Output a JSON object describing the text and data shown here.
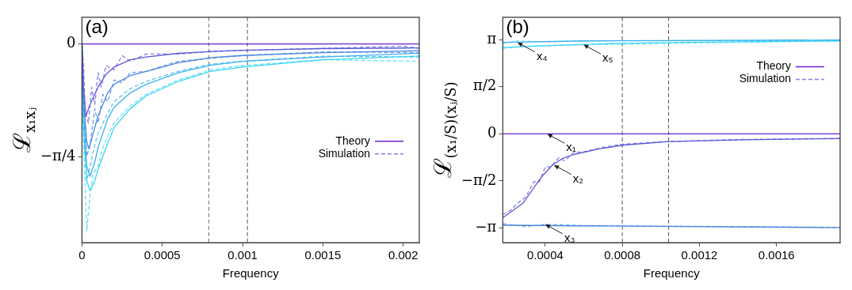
{
  "chart_data": [
    {
      "type": "line",
      "title": "(a)",
      "xlabel": "Frequency",
      "ylabel": "ℒ$_{x₁xⱼ}$",
      "xlim": [
        0,
        0.0021
      ],
      "ylim": [
        -1.38,
        0.186
      ],
      "xticks": [
        0,
        0.0005,
        0.001,
        0.0015,
        0.002
      ],
      "yticks": [
        {
          "value": -0.7854,
          "label": "−π/4"
        },
        0
      ],
      "grid": false,
      "legend": "right",
      "marker": "none",
      "ref_lines": [
        {
          "axis": "x",
          "value": 0.00079,
          "color": "#777777",
          "line_style": "dashed"
        },
        {
          "axis": "x",
          "value": 0.00103,
          "color": "#555555",
          "line_style": "dashed"
        }
      ],
      "series": [
        {
          "name": "Theory",
          "color": "#6a1fd0",
          "line_style": "solid",
          "x": [
            0,
            0.0021
          ],
          "values": [
            0,
            0
          ]
        },
        {
          "color": "#5a5ad8",
          "line_style": "solid",
          "x": [
            0,
            1e-05,
            2.5e-05,
            5e-05,
            0.0001,
            0.00015,
            0.0002,
            0.0003,
            0.0004,
            0.0006,
            0.0008,
            0.001,
            0.0015,
            0.0021
          ],
          "values": [
            0,
            -0.3,
            -0.5,
            -0.42,
            -0.3,
            -0.21,
            -0.16,
            -0.11,
            -0.09,
            -0.065,
            -0.053,
            -0.044,
            -0.032,
            -0.027
          ]
        },
        {
          "color": "#4a88e0",
          "line_style": "solid",
          "x": [
            0,
            1e-05,
            3e-05,
            4.4e-05,
            7e-05,
            0.0001,
            0.00016,
            0.0002,
            0.0003,
            0.0004,
            0.0006,
            0.0008,
            0.001,
            0.0015,
            0.0021
          ],
          "values": [
            0,
            -0.4,
            -0.68,
            -0.73,
            -0.62,
            -0.5,
            -0.34,
            -0.28,
            -0.22,
            -0.19,
            -0.13,
            -0.095,
            -0.08,
            -0.06,
            -0.047
          ]
        },
        {
          "color": "#3ab0ee",
          "line_style": "solid",
          "x": [
            0,
            1e-05,
            3e-05,
            5e-05,
            8e-05,
            0.0001,
            0.00016,
            0.0002,
            0.0003,
            0.0004,
            0.0006,
            0.0008,
            0.001,
            0.0015,
            0.0021
          ],
          "values": [
            0,
            -0.5,
            -0.85,
            -0.92,
            -0.82,
            -0.72,
            -0.52,
            -0.44,
            -0.34,
            -0.28,
            -0.2,
            -0.148,
            -0.12,
            -0.09,
            -0.064
          ]
        },
        {
          "color": "#33d6f5",
          "line_style": "solid",
          "x": [
            0,
            1e-05,
            3e-05,
            5e-05,
            8e-05,
            0.0001,
            0.00016,
            0.0002,
            0.0003,
            0.0004,
            0.0006,
            0.0008,
            0.001,
            0.0015,
            0.0021
          ],
          "values": [
            0,
            -0.6,
            -0.95,
            -1.02,
            -0.95,
            -0.87,
            -0.69,
            -0.58,
            -0.45,
            -0.36,
            -0.26,
            -0.19,
            -0.16,
            -0.11,
            -0.084
          ]
        },
        {
          "name": "Simulation",
          "color": "#8a7ee6",
          "line_style": "dashed",
          "x": [
            0,
            1e-05,
            2e-05,
            4e-05,
            6e-05,
            8e-05,
            0.0001,
            0.00012,
            0.00015,
            0.0002,
            0.00025,
            0.0003,
            0.0004,
            0.0006,
            0.0008,
            0.001,
            0.0015,
            0.002,
            0.0021
          ],
          "values": [
            0,
            -0.15,
            -0.48,
            -0.55,
            -0.3,
            -0.42,
            -0.2,
            -0.3,
            -0.15,
            -0.18,
            -0.08,
            -0.12,
            -0.07,
            -0.07,
            -0.05,
            -0.045,
            -0.03,
            -0.015,
            -0.03
          ]
        },
        {
          "color": "#6f9ae8",
          "line_style": "dashed",
          "x": [
            0,
            1e-05,
            3e-05,
            5e-05,
            8e-05,
            0.0001,
            0.00013,
            0.00016,
            0.0002,
            0.00025,
            0.0003,
            0.0004,
            0.0006,
            0.0008,
            0.001,
            0.0015,
            0.0021
          ],
          "values": [
            0,
            -0.3,
            -0.78,
            -0.7,
            -0.45,
            -0.55,
            -0.35,
            -0.4,
            -0.25,
            -0.27,
            -0.2,
            -0.19,
            -0.12,
            -0.1,
            -0.08,
            -0.055,
            -0.06
          ]
        },
        {
          "color": "#5cc0f0",
          "line_style": "dashed",
          "x": [
            0,
            1e-05,
            3e-05,
            5e-05,
            8e-05,
            0.0001,
            0.00013,
            0.00016,
            0.0002,
            0.0003,
            0.0004,
            0.0006,
            0.0008,
            0.001,
            0.0015,
            0.0021
          ],
          "values": [
            0,
            -0.6,
            -0.95,
            -0.85,
            -0.7,
            -0.62,
            -0.55,
            -0.48,
            -0.4,
            -0.31,
            -0.26,
            -0.19,
            -0.14,
            -0.12,
            -0.085,
            -0.09
          ]
        },
        {
          "color": "#66e0f8",
          "line_style": "dashed",
          "x": [
            0,
            1e-05,
            3e-05,
            5e-05,
            7e-05,
            0.0001,
            0.00013,
            0.00016,
            0.0002,
            0.0003,
            0.0004,
            0.0006,
            0.0008,
            0.001,
            0.0015,
            0.0021
          ],
          "values": [
            0,
            -0.7,
            -1.3,
            -1.05,
            -0.9,
            -0.85,
            -0.72,
            -0.64,
            -0.55,
            -0.43,
            -0.35,
            -0.25,
            -0.18,
            -0.15,
            -0.11,
            -0.12
          ]
        }
      ]
    },
    {
      "type": "line",
      "title": "(b)",
      "xlabel": "Frequency",
      "ylabel": "ℒ$_{(x₁/S)(xⱼ/S)}$",
      "xlim": [
        0.00018,
        0.00193
      ],
      "ylim": [
        -3.63,
        3.89
      ],
      "xticks": [
        0.0004,
        0.0008,
        0.0012,
        0.0016
      ],
      "yticks": [
        {
          "value": -3.1416,
          "label": "−π"
        },
        {
          "value": -1.5708,
          "label": "−π/2"
        },
        0,
        {
          "value": 1.5708,
          "label": "π/2"
        },
        {
          "value": 3.1416,
          "label": "π"
        }
      ],
      "grid": false,
      "legend": "top right",
      "marker": "none",
      "ref_lines": [
        {
          "axis": "x",
          "value": 0.0008,
          "color": "#555555",
          "line_style": "dashed"
        },
        {
          "axis": "x",
          "value": 0.00104,
          "color": "#555555",
          "line_style": "dashed"
        }
      ],
      "annotations": [
        {
          "text": "x₁",
          "x": 0.00041,
          "y": 0
        },
        {
          "text": "x₂",
          "x": 0.000445,
          "y": -1.04
        },
        {
          "text": "x₃",
          "x": 0.0004,
          "y": -3.02
        },
        {
          "text": "x₄",
          "x": 0.000256,
          "y": 3.05
        },
        {
          "text": "x₅",
          "x": 0.000598,
          "y": 2.98
        }
      ],
      "series": [
        {
          "name": "Theory",
          "color": "#6a1fd0",
          "line_style": "solid",
          "x": [
            0.00018,
            0.00193
          ],
          "values": [
            0,
            0
          ]
        },
        {
          "color": "#5a5ad8",
          "line_style": "solid",
          "x": [
            0.00018,
            0.000284,
            0.00033,
            0.000382,
            0.000438,
            0.00049,
            0.000549,
            0.000675,
            0.0008,
            0.00104,
            0.00144,
            0.00193
          ],
          "values": [
            -2.8,
            -2.32,
            -1.9,
            -1.43,
            -1.04,
            -0.82,
            -0.69,
            -0.51,
            -0.38,
            -0.26,
            -0.2,
            -0.16
          ]
        },
        {
          "color": "#4a88e0",
          "line_style": "solid",
          "x": [
            0.00018,
            0.0008,
            0.00193
          ],
          "values": [
            -3.05,
            -3.08,
            -3.13
          ]
        },
        {
          "color": "#3ab0ee",
          "line_style": "solid",
          "x": [
            0.00018,
            0.0006,
            0.00193
          ],
          "values": [
            3.05,
            3.1,
            3.13
          ]
        },
        {
          "color": "#33d6f5",
          "line_style": "solid",
          "x": [
            0.00018,
            0.0004,
            0.0006,
            0.0008,
            0.0012,
            0.00193
          ],
          "values": [
            2.88,
            2.94,
            2.98,
            3.02,
            3.06,
            3.1
          ]
        },
        {
          "name": "Simulation",
          "color": "#8a7ee6",
          "line_style": "dashed",
          "x": [
            0.00018,
            0.00022,
            0.00026,
            0.0003,
            0.00034,
            0.00037,
            0.0004,
            0.00043,
            0.00047,
            0.0005,
            0.00055,
            0.0006,
            0.0007,
            0.0008,
            0.001,
            0.0014,
            0.00193
          ],
          "values": [
            -2.7,
            -2.55,
            -2.3,
            -2.1,
            -1.6,
            -1.6,
            -1.1,
            -1.1,
            -0.8,
            -0.9,
            -0.62,
            -0.6,
            -0.45,
            -0.35,
            -0.27,
            -0.19,
            -0.15
          ]
        },
        {
          "color": "#7fb0ec",
          "line_style": "dashed",
          "x": [
            0.00018,
            0.0003,
            0.0004,
            0.0006,
            0.0008,
            0.00193
          ],
          "values": [
            -3.0,
            -3.1,
            -3.02,
            -3.06,
            -3.07,
            -3.12
          ]
        },
        {
          "color": "#7fe4f8",
          "line_style": "dashed",
          "x": [
            0.00018,
            0.00025,
            0.0004,
            0.0007,
            0.00193
          ],
          "values": [
            3.0,
            3.1,
            3.07,
            3.1,
            3.12
          ]
        },
        {
          "color": "#7fe4f8",
          "line_style": "dashed",
          "x": [
            0.00018,
            0.0003,
            0.0005,
            0.00193
          ],
          "values": [
            2.85,
            2.92,
            2.96,
            3.1
          ]
        }
      ]
    }
  ]
}
